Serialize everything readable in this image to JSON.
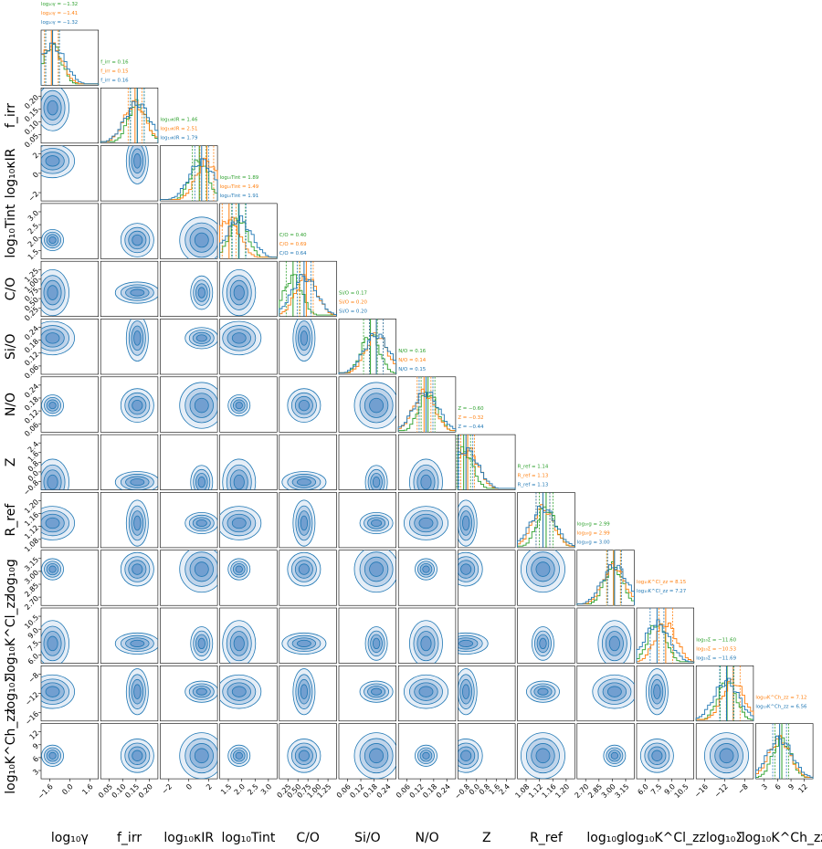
{
  "colors": {
    "blue": "#1f77b4",
    "orange": "#ff7f0e",
    "green": "#2ca02c",
    "fill": "#3b7bbf"
  },
  "chart_data": {
    "type": "corner",
    "params": [
      {
        "id": "logy",
        "label": "log₁₀γ",
        "ticks": [
          "−1.6",
          "0.0",
          "1.6"
        ],
        "range": [
          -2.2,
          2.2
        ]
      },
      {
        "id": "firr",
        "label": "f_irr",
        "ticks": [
          "0.05",
          "0.10",
          "0.15",
          "0.20"
        ],
        "range": [
          0.0,
          0.25
        ]
      },
      {
        "id": "logk",
        "label": "log₁₀κIR",
        "ticks": [
          "−2",
          "0",
          "2"
        ],
        "range": [
          -4,
          4
        ]
      },
      {
        "id": "logt",
        "label": "log₁₀Tint",
        "ticks": [
          "1.5",
          "2.0",
          "2.5",
          "3.0"
        ],
        "range": [
          1.1,
          3.5
        ]
      },
      {
        "id": "co",
        "label": "C/O",
        "ticks": [
          "0.25",
          "0.50",
          "0.75",
          "1.00",
          "1.25"
        ],
        "range": [
          0.1,
          1.35
        ]
      },
      {
        "id": "sio",
        "label": "Si/O",
        "ticks": [
          "0.06",
          "0.12",
          "0.18",
          "0.24"
        ],
        "range": [
          0.01,
          0.3
        ]
      },
      {
        "id": "no",
        "label": "N/O",
        "ticks": [
          "0.06",
          "0.12",
          "0.18",
          "0.24"
        ],
        "range": [
          0.01,
          0.3
        ]
      },
      {
        "id": "z",
        "label": "Z",
        "ticks": [
          "−0.8",
          "0.0",
          "0.8",
          "1.6",
          "2.4"
        ],
        "range": [
          -1.0,
          3.0
        ]
      },
      {
        "id": "rref",
        "label": "R_ref",
        "ticks": [
          "1.08",
          "1.12",
          "1.16",
          "1.20"
        ],
        "range": [
          1.05,
          1.23
        ]
      },
      {
        "id": "logg",
        "label": "log₁₀g",
        "ticks": [
          "2.70",
          "2.85",
          "3.00",
          "3.15"
        ],
        "range": [
          2.62,
          3.2
        ]
      },
      {
        "id": "kcl",
        "label": "log₁₀K^Cl_zz",
        "ticks": [
          "6.0",
          "7.5",
          "9.0",
          "10.5"
        ],
        "range": [
          5.2,
          11.0
        ]
      },
      {
        "id": "sig",
        "label": "log₁₀Σ̇",
        "ticks": [
          "−16",
          "−12",
          "−8"
        ],
        "range": [
          -17,
          -7
        ]
      },
      {
        "id": "kch",
        "label": "log₁₀K^Ch_zz",
        "ticks": [
          "3",
          "6",
          "9",
          "12"
        ],
        "range": [
          0.5,
          15
        ]
      }
    ],
    "series": [
      {
        "name": "green",
        "color": "#2ca02c",
        "values": [
          -1.32,
          0.16,
          1.46,
          1.89,
          0.4,
          0.17,
          0.16,
          -0.6,
          1.14,
          2.99,
          null,
          -11.6,
          7.12
        ]
      },
      {
        "name": "orange",
        "color": "#ff7f0e",
        "values": [
          -1.41,
          0.15,
          2.51,
          1.49,
          0.69,
          0.2,
          0.14,
          -0.32,
          1.13,
          2.99,
          8.15,
          -10.53,
          null
        ]
      },
      {
        "name": "blue",
        "color": "#1f77b4",
        "values": [
          -1.32,
          0.16,
          1.79,
          1.91,
          0.64,
          0.2,
          0.15,
          -0.44,
          1.13,
          3.0,
          7.27,
          -11.69,
          6.56
        ]
      }
    ],
    "annotations": [
      [
        "log₁₀γ = −1.32",
        "log₁₀γ = −1.41",
        "log₁₀γ = −1.32"
      ],
      [
        "f_irr = 0.16",
        "f_irr = 0.15",
        "f_irr = 0.16"
      ],
      [
        "log₁₀κIR = 1.46",
        "log₁₀κIR = 2.51",
        "log₁₀κIR = 1.79"
      ],
      [
        "log₁₀Tint = 1.89",
        "log₁₀Tint = 1.49",
        "log₁₀Tint = 1.91"
      ],
      [
        "C/O = 0.40",
        "C/O = 0.69",
        "C/O = 0.64"
      ],
      [
        "Si/O = 0.17",
        "Si/O = 0.20",
        "Si/O = 0.20"
      ],
      [
        "N/O = 0.16",
        "N/O = 0.14",
        "N/O = 0.15"
      ],
      [
        "Z = −0.60",
        "Z = −0.32",
        "Z = −0.44"
      ],
      [
        "R_ref = 1.14",
        "R_ref = 1.13",
        "R_ref = 1.13"
      ],
      [
        "log₁₀g = 2.99",
        "log₁₀g = 2.99",
        "log₁₀g = 3.00"
      ],
      [
        "log₁₀K^Cl_zz = 8.15",
        "log₁₀K^Cl_zz = 7.27"
      ],
      [
        "log₁₀Σ̇ = −11.60",
        "log₁₀Σ̇ = −10.53",
        "log₁₀Σ̇ = −11.69"
      ],
      [
        "log₁₀K^Ch_zz = 7.12",
        "log₁₀K^Ch_zz = 6.56"
      ]
    ]
  }
}
